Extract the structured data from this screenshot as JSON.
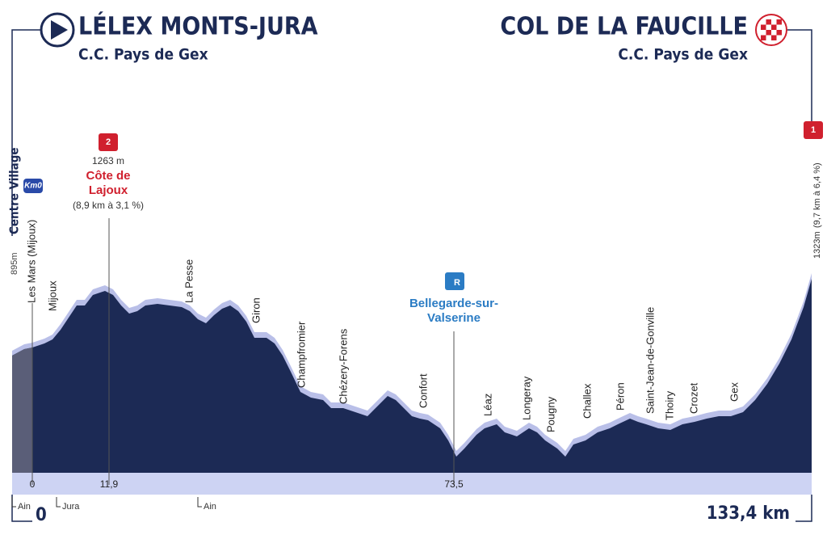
{
  "start": {
    "title": "LÉLEX MONTS-JURA",
    "subtitle": "C.C. Pays de Gex",
    "location": "Centre Village",
    "badge": "Km0",
    "altitude": "895m"
  },
  "finish": {
    "title": "COL DE LA FAUCILLE",
    "subtitle": "C.C. Pays de Gex",
    "badge": "1",
    "altitude": "1323m",
    "climb_detail": "(9,7 km à 6,4 %)"
  },
  "climb": {
    "badge": "2",
    "altitude": "1263 m",
    "name_lines": [
      "Côte de",
      "Lajoux"
    ],
    "detail": "(8,9 km à 3,1 %)"
  },
  "sprint": {
    "badge": "R",
    "name_lines": [
      "Bellegarde-sur-",
      "Valserine"
    ]
  },
  "places": [
    "Les Mars (Mijoux)",
    "Mijoux",
    "La Pesse",
    "Giron",
    "Champfromier",
    "Chézery-Forens",
    "Confort",
    "Léaz",
    "Longeray",
    "Pougny",
    "Challex",
    "Péron",
    "Saint-Jean-de-Gonville",
    "Thoiry",
    "Crozet",
    "Gex"
  ],
  "km_markers": [
    "0",
    "11,9",
    "73,5"
  ],
  "departments": [
    "Ain",
    "Jura",
    "Ain"
  ],
  "footer": {
    "start_km": "0",
    "total_distance": "133,4 km"
  }
}
